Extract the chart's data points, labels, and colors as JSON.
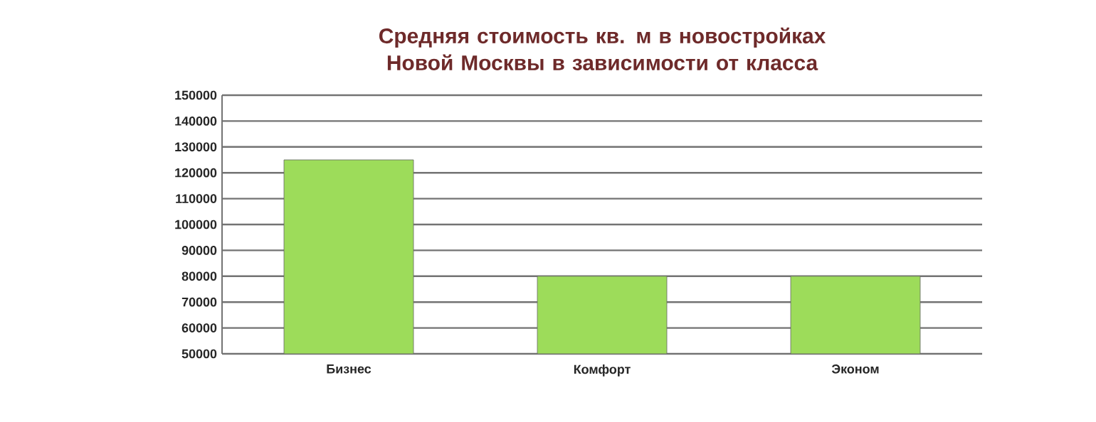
{
  "chart_data": {
    "type": "bar",
    "title": "Средняя стоимость кв.  м в новостройках Новой Москвы в зависимости от класса",
    "categories": [
      "Бизнес",
      "Комфорт",
      "Эконом"
    ],
    "values": [
      125000,
      80000,
      80000
    ],
    "color": "#9ddc5a",
    "ylim": [
      50000,
      150000
    ],
    "yticks": [
      50000,
      60000,
      70000,
      80000,
      90000,
      100000,
      110000,
      120000,
      130000,
      140000,
      150000
    ],
    "grid": "y"
  }
}
